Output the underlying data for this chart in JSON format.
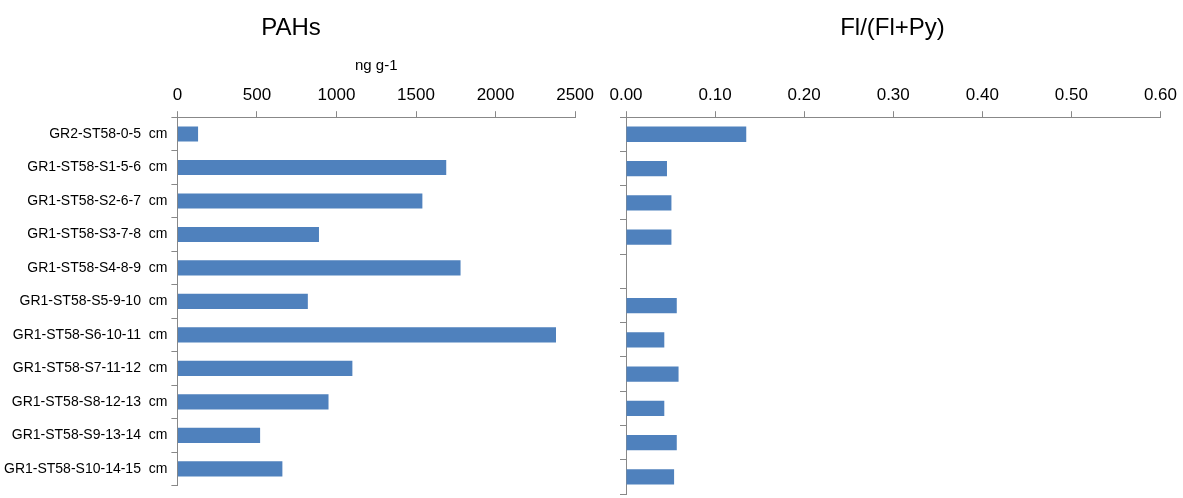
{
  "chart_data": [
    {
      "type": "bar",
      "orientation": "horizontal",
      "title": "PAHs",
      "xlabel": "ng g-1",
      "categories": [
        "GR2-ST58-0-5  cm",
        "GR1-ST58-S1-5-6  cm",
        "GR1-ST58-S2-6-7  cm",
        "GR1-ST58-S3-7-8  cm",
        "GR1-ST58-S4-8-9  cm",
        "GR1-ST58-S5-9-10  cm",
        "GR1-ST58-S6-10-11  cm",
        "GR1-ST58-S7-11-12  cm",
        "GR1-ST58-S8-12-13  cm",
        "GR1-ST58-S9-13-14  cm",
        "GR1-ST58-S10-14-15  cm"
      ],
      "values": [
        130,
        1690,
        1540,
        890,
        1780,
        820,
        2380,
        1100,
        950,
        520,
        660
      ],
      "color": "#4f81bd",
      "xlim": [
        0,
        2500
      ],
      "xticks": [
        0,
        500,
        1000,
        1500,
        2000,
        2500
      ],
      "grid": false,
      "legend": false
    },
    {
      "type": "bar",
      "orientation": "horizontal",
      "title": "Fl/(Fl+Py)",
      "categories": [
        null,
        null,
        null,
        null,
        null,
        null,
        null,
        null,
        null,
        null,
        null
      ],
      "values": [
        0.135,
        0.046,
        0.051,
        0.051,
        null,
        0.057,
        0.043,
        0.059,
        0.043,
        0.057,
        0.054
      ],
      "color": "#4f81bd",
      "xlim": [
        0,
        0.6
      ],
      "xticks": [
        {
          "value": 0,
          "label": "0.00"
        },
        {
          "value": 0.1,
          "label": "0.10"
        },
        {
          "value": 0.2,
          "label": "0.20"
        },
        {
          "value": 0.3,
          "label": "0.30"
        },
        {
          "value": 0.4,
          "label": "0.40"
        },
        {
          "value": 0.5,
          "label": "0.50"
        },
        {
          "value": 0.6,
          "label": "0.60"
        }
      ],
      "grid": false,
      "legend": false,
      "tick_labels": "x"
    }
  ]
}
